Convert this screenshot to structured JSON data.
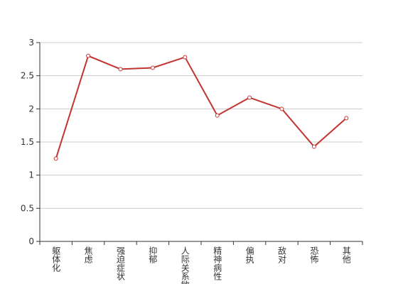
{
  "chart_data": {
    "type": "line",
    "categories": [
      "躯体化",
      "焦虑",
      "强迫症状",
      "抑郁",
      "人际关系敏感",
      "精神病性",
      "偏执",
      "敌对",
      "恐怖",
      "其他"
    ],
    "series": [
      {
        "color": "#c23531",
        "values": [
          1.25,
          2.8,
          2.6,
          2.62,
          2.78,
          1.9,
          2.17,
          2.0,
          1.43,
          1.86
        ]
      }
    ],
    "ylim": [
      0,
      3
    ],
    "yticks": [
      0,
      0.5,
      1,
      1.5,
      2,
      2.5,
      3
    ],
    "grid": true
  }
}
